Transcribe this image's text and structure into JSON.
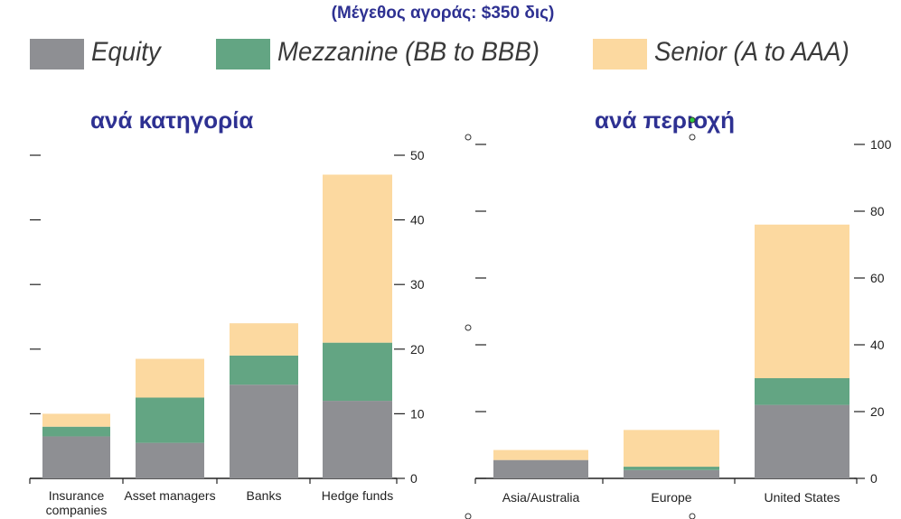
{
  "title": "(Μέγεθος αγοράς: $350 δις)",
  "legend": [
    {
      "label": "Equity",
      "color": "#8e8f93"
    },
    {
      "label": "Mezzanine (BB to BBB)",
      "color": "#63a583"
    },
    {
      "label": "Senior (A to AAA)",
      "color": "#fcd9a0"
    }
  ],
  "chart_data": [
    {
      "type": "bar",
      "stacked": true,
      "title": "ανά κατηγορία",
      "categories": [
        "Insurance companies",
        "Asset managers",
        "Banks",
        "Hedge funds"
      ],
      "category_lines": [
        [
          "Insurance",
          "companies"
        ],
        [
          "Asset managers"
        ],
        [
          "Banks"
        ],
        [
          "Hedge funds"
        ]
      ],
      "series": [
        {
          "name": "Equity",
          "values": [
            6.5,
            5.5,
            14.5,
            12
          ]
        },
        {
          "name": "Mezzanine (BB to BBB)",
          "values": [
            1.5,
            7,
            4.5,
            9
          ]
        },
        {
          "name": "Senior (A to AAA)",
          "values": [
            2,
            6,
            5,
            26
          ]
        }
      ],
      "ylim": [
        0,
        50
      ],
      "yticks": [
        0,
        10,
        20,
        30,
        40,
        50
      ],
      "yaxis_side": "right",
      "legend": "top"
    },
    {
      "type": "bar",
      "stacked": true,
      "title": "ανά περιοχή",
      "categories": [
        "Asia/Australia",
        "Europe",
        "United States"
      ],
      "category_lines": [
        [
          "Asia/Australia"
        ],
        [
          "Europe"
        ],
        [
          "United States"
        ]
      ],
      "series": [
        {
          "name": "Equity",
          "values": [
            5.5,
            2.5,
            22
          ]
        },
        {
          "name": "Mezzanine (BB to BBB)",
          "values": [
            0,
            1,
            8
          ]
        },
        {
          "name": "Senior (A to AAA)",
          "values": [
            3,
            11,
            46
          ]
        }
      ],
      "ylim": [
        0,
        100
      ],
      "yticks": [
        0,
        20,
        40,
        60,
        80,
        100
      ],
      "yaxis_side": "right",
      "legend": "top"
    }
  ]
}
